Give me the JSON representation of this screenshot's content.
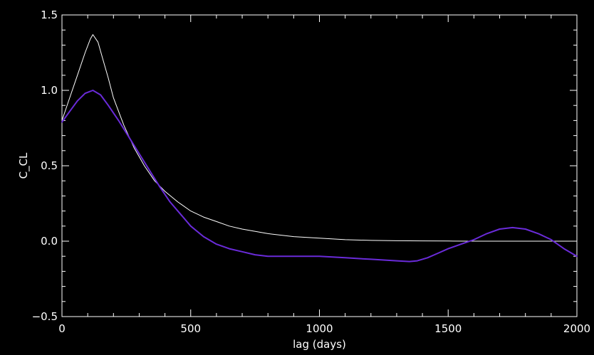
{
  "chart_data": {
    "type": "line",
    "xlabel": "lag (days)",
    "ylabel": "C_CL",
    "xlim": [
      0,
      2000
    ],
    "ylim": [
      -0.5,
      1.5
    ],
    "x_ticks": [
      0,
      500,
      1000,
      1500,
      2000
    ],
    "x_tick_labels": [
      "0",
      "500",
      "1000",
      "1500",
      "2000"
    ],
    "y_ticks": [
      -0.5,
      0.0,
      0.5,
      1.0,
      1.5
    ],
    "y_tick_labels": [
      "−0.5",
      "0.0",
      "0.5",
      "1.0",
      "1.5"
    ],
    "grid": false,
    "colors": {
      "background": "#000000",
      "axes": "#ffffff"
    },
    "series": [
      {
        "color": "#ffffff",
        "x": [
          0,
          30,
          60,
          90,
          110,
          120,
          140,
          160,
          180,
          200,
          240,
          280,
          320,
          360,
          400,
          450,
          500,
          550,
          600,
          650,
          700,
          800,
          900,
          1000,
          1100,
          1200,
          1300,
          1400,
          1500,
          1600,
          1700,
          1800,
          1900,
          2000
        ],
        "y": [
          0.8,
          0.95,
          1.1,
          1.25,
          1.34,
          1.37,
          1.32,
          1.2,
          1.08,
          0.95,
          0.77,
          0.62,
          0.5,
          0.4,
          0.33,
          0.26,
          0.2,
          0.16,
          0.13,
          0.1,
          0.08,
          0.05,
          0.03,
          0.02,
          0.01,
          0.005,
          0.003,
          0.002,
          0.001,
          0.0,
          0.0,
          0.0,
          0.0,
          0.0
        ]
      },
      {
        "color": "#6a2bd9",
        "x": [
          0,
          30,
          60,
          90,
          120,
          150,
          180,
          220,
          260,
          300,
          340,
          380,
          420,
          460,
          500,
          550,
          600,
          650,
          700,
          750,
          800,
          850,
          900,
          950,
          1000,
          1050,
          1100,
          1150,
          1200,
          1250,
          1300,
          1350,
          1380,
          1420,
          1460,
          1500,
          1550,
          1600,
          1650,
          1700,
          1750,
          1800,
          1850,
          1900,
          1950,
          2000
        ],
        "y": [
          0.79,
          0.86,
          0.93,
          0.98,
          1.0,
          0.97,
          0.9,
          0.8,
          0.69,
          0.58,
          0.47,
          0.36,
          0.26,
          0.18,
          0.1,
          0.03,
          -0.02,
          -0.05,
          -0.07,
          -0.09,
          -0.1,
          -0.1,
          -0.1,
          -0.1,
          -0.1,
          -0.105,
          -0.11,
          -0.115,
          -0.12,
          -0.125,
          -0.13,
          -0.135,
          -0.13,
          -0.11,
          -0.08,
          -0.05,
          -0.02,
          0.01,
          0.05,
          0.08,
          0.09,
          0.08,
          0.05,
          0.01,
          -0.05,
          -0.1
        ]
      }
    ]
  }
}
